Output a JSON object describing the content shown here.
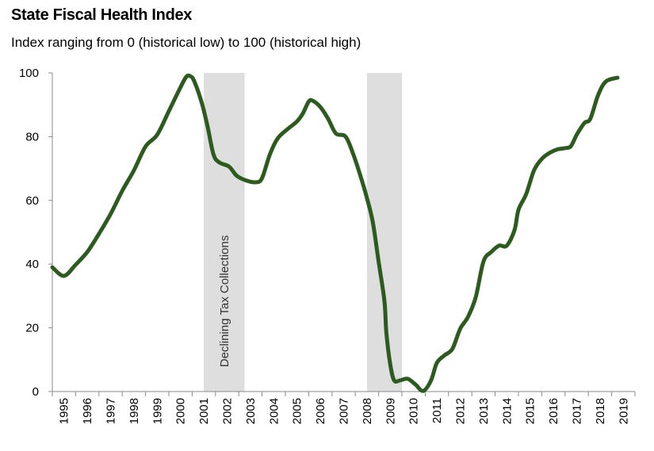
{
  "chart_data": {
    "type": "line",
    "title": "State Fiscal Health Index",
    "subtitle": "Index ranging from 0 (historical low) to 100 (historical high)",
    "xlabel": "",
    "ylabel": "",
    "ylim": [
      0,
      100
    ],
    "yticks": [
      0,
      20,
      40,
      60,
      80,
      100
    ],
    "xtick_labels": [
      "1995",
      "1996",
      "1997",
      "1998",
      "1999",
      "2000",
      "2001",
      "2002",
      "2003",
      "2004",
      "2005",
      "2006",
      "2007",
      "2008",
      "2009",
      "2010",
      "2011",
      "2012",
      "2013",
      "2014",
      "2015",
      "2016",
      "2017",
      "2018",
      "2019"
    ],
    "grid": false,
    "line_color": "#2d5a1e",
    "band_color": "#dedede",
    "shaded_periods": [
      {
        "start": "2001-07",
        "end": "2003-04",
        "label": "Declining Tax Collections"
      },
      {
        "start": "2008-07",
        "end": "2010-01",
        "label": ""
      }
    ],
    "series": [
      {
        "points": [
          [
            "1995-01",
            39.0
          ],
          [
            "1995-07",
            36.3
          ],
          [
            "1996-01",
            39.8
          ],
          [
            "1996-07",
            43.8
          ],
          [
            "1997-01",
            49.5
          ],
          [
            "1997-07",
            55.7
          ],
          [
            "1998-01",
            63.0
          ],
          [
            "1998-07",
            69.4
          ],
          [
            "1999-01",
            76.9
          ],
          [
            "1999-07",
            80.6
          ],
          [
            "2000-01",
            88.0
          ],
          [
            "2000-07",
            95.5
          ],
          [
            "2000-10",
            98.8
          ],
          [
            "2000-12",
            99.0
          ],
          [
            "2001-02",
            97.5
          ],
          [
            "2001-06",
            90.5
          ],
          [
            "2001-09",
            83.0
          ],
          [
            "2001-12",
            74.4
          ],
          [
            "2002-03",
            71.9
          ],
          [
            "2002-08",
            70.6
          ],
          [
            "2002-12",
            67.7
          ],
          [
            "2003-05",
            66.2
          ],
          [
            "2003-10",
            65.7
          ],
          [
            "2004-01",
            67.0
          ],
          [
            "2004-05",
            74.4
          ],
          [
            "2004-09",
            79.4
          ],
          [
            "2005-02",
            82.3
          ],
          [
            "2005-07",
            84.8
          ],
          [
            "2005-10",
            87.3
          ],
          [
            "2006-01",
            91.0
          ],
          [
            "2006-03",
            91.3
          ],
          [
            "2006-07",
            89.3
          ],
          [
            "2006-11",
            85.6
          ],
          [
            "2007-03",
            81.0
          ],
          [
            "2007-08",
            80.0
          ],
          [
            "2007-12",
            74.4
          ],
          [
            "2008-04",
            67.0
          ],
          [
            "2008-07",
            60.7
          ],
          [
            "2008-10",
            53.2
          ],
          [
            "2009-01",
            40.8
          ],
          [
            "2009-04",
            28.4
          ],
          [
            "2009-05",
            18.4
          ],
          [
            "2009-07",
            8.5
          ],
          [
            "2009-09",
            3.5
          ],
          [
            "2009-12",
            3.5
          ],
          [
            "2010-04",
            4.0
          ],
          [
            "2010-08",
            2.2
          ],
          [
            "2010-12",
            0.2
          ],
          [
            "2011-04",
            3.5
          ],
          [
            "2011-07",
            9.0
          ],
          [
            "2011-11",
            11.4
          ],
          [
            "2012-03",
            13.4
          ],
          [
            "2012-07",
            19.7
          ],
          [
            "2012-11",
            23.4
          ],
          [
            "2013-03",
            29.6
          ],
          [
            "2013-07",
            40.8
          ],
          [
            "2013-11",
            43.8
          ],
          [
            "2014-03",
            45.8
          ],
          [
            "2014-07",
            45.8
          ],
          [
            "2014-11",
            50.7
          ],
          [
            "2015-01",
            57.0
          ],
          [
            "2015-05",
            62.0
          ],
          [
            "2015-09",
            69.4
          ],
          [
            "2016-01",
            73.0
          ],
          [
            "2016-05",
            74.9
          ],
          [
            "2016-09",
            76.0
          ],
          [
            "2017-01",
            76.4
          ],
          [
            "2017-04",
            77.0
          ],
          [
            "2017-07",
            80.6
          ],
          [
            "2017-11",
            84.3
          ],
          [
            "2018-02",
            85.6
          ],
          [
            "2018-06",
            93.0
          ],
          [
            "2018-10",
            97.3
          ],
          [
            "2019-04",
            98.5
          ]
        ]
      }
    ]
  }
}
